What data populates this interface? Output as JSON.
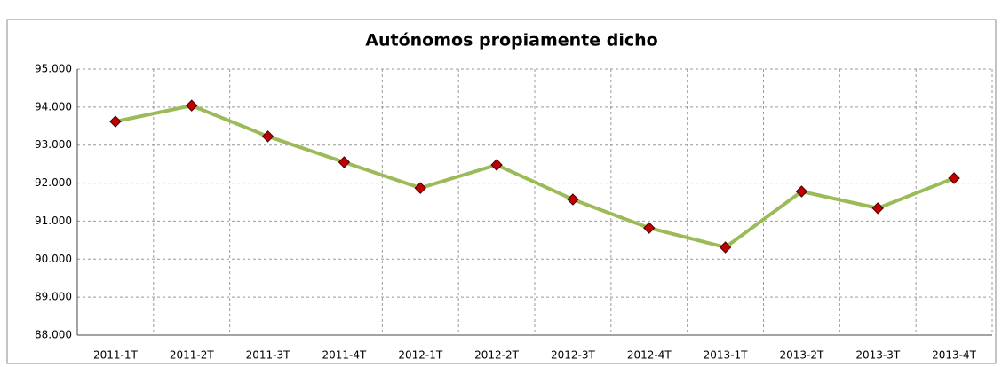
{
  "chart_data": {
    "type": "line",
    "title": "Autónomos  propiamente dicho",
    "categories": [
      "2011-1T",
      "2011-2T",
      "2011-3T",
      "2011-4T",
      "2012-1T",
      "2012-2T",
      "2012-3T",
      "2012-4T",
      "2013-1T",
      "2013-2T",
      "2013-3T",
      "2013-4T"
    ],
    "series": [
      {
        "name": "Autónomos propiamente dicho",
        "color": "#9bbb59",
        "marker_color": "#c00000",
        "values": [
          93620,
          94040,
          93230,
          92550,
          91870,
          92480,
          91570,
          90820,
          90310,
          91780,
          91340,
          92130
        ]
      }
    ],
    "ylim": [
      88000,
      95000
    ],
    "yticks": [
      {
        "value": 88000,
        "label": "88.000"
      },
      {
        "value": 89000,
        "label": "89.000"
      },
      {
        "value": 90000,
        "label": "90.000"
      },
      {
        "value": 91000,
        "label": "91.000"
      },
      {
        "value": 92000,
        "label": "92.000"
      },
      {
        "value": 93000,
        "label": "93.000"
      },
      {
        "value": 94000,
        "label": "94.000"
      },
      {
        "value": 95000,
        "label": "95.000"
      }
    ],
    "grid": true
  }
}
